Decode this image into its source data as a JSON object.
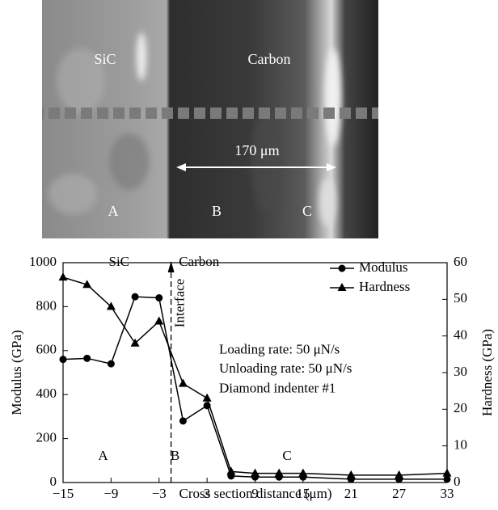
{
  "image": {
    "labels": [
      "SiC",
      "Carbon",
      "A",
      "B",
      "C"
    ],
    "scale_bar": "170 μm"
  },
  "chart_data": {
    "type": "line",
    "x": [
      -15,
      -12,
      -9,
      -6,
      -3,
      0,
      3,
      6,
      9,
      12,
      15,
      21,
      27,
      33
    ],
    "series": [
      {
        "name": "Modulus",
        "color": "#000000",
        "marker": "circle",
        "axis": "y",
        "values": [
          560,
          565,
          540,
          845,
          840,
          280,
          350,
          30,
          25,
          25,
          25,
          15,
          15,
          15
        ]
      },
      {
        "name": "Hardness",
        "color": "#000000",
        "marker": "triangle",
        "axis": "y2",
        "values": [
          56,
          54,
          48,
          38,
          44,
          27,
          23,
          3,
          2.5,
          2.5,
          2.5,
          2,
          2,
          2.5
        ]
      }
    ],
    "xlabel": "Cross section distance (μm)",
    "ylabel": "Modulus (GPa)",
    "y2label": "Hardness (GPa)",
    "xlim": [
      -15,
      33
    ],
    "xticks": [
      {
        "value": -15,
        "label": "−15"
      },
      {
        "value": -9,
        "label": "−9"
      },
      {
        "value": -3,
        "label": "−3"
      },
      3,
      9,
      15,
      21,
      27,
      33
    ],
    "ylim": [
      0,
      1000
    ],
    "yticks": [
      0,
      200,
      400,
      600,
      800,
      1000
    ],
    "y2lim": [
      0,
      60
    ],
    "y2ticks": [
      0,
      10,
      20,
      30,
      40,
      50,
      60
    ],
    "legend": "upper right",
    "interface": {
      "text": "Interface",
      "x": -1.5
    },
    "annotations": [
      {
        "text": "SiC",
        "x": -8,
        "y": 1000
      },
      {
        "text": "Carbon",
        "x": 2,
        "y": 1000
      },
      {
        "text": "A",
        "x": -10,
        "y": 118
      },
      {
        "text": "B",
        "x": -1,
        "y": 118
      },
      {
        "text": "C",
        "x": 13,
        "y": 118
      },
      {
        "text": "Loading rate: 50 μN/s",
        "x": 4.5,
        "y": 600
      },
      {
        "text": "Unloading rate: 50 μN/s",
        "x": 4.5,
        "y": 515
      },
      {
        "text": "Diamond indenter #1",
        "x": 4.5,
        "y": 425
      }
    ]
  }
}
